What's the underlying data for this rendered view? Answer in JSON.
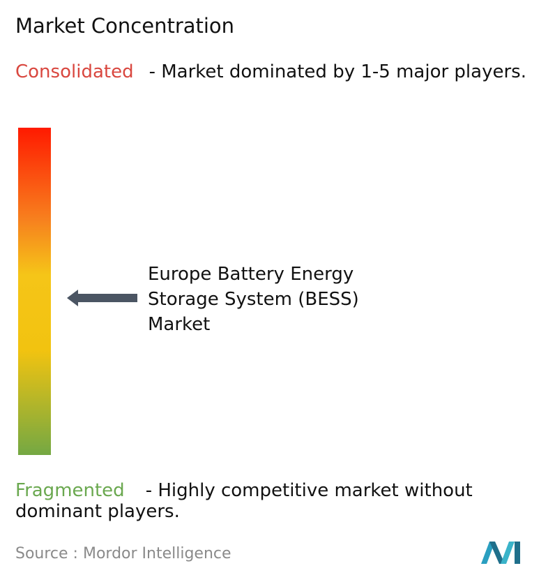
{
  "title": "Market Concentration",
  "consolidated": {
    "label": "Consolidated",
    "description": "- Market dominated by 1-5 major players."
  },
  "market": {
    "label": "Europe Battery Energy Storage System (BESS) Market"
  },
  "fragmented": {
    "label": "Fragmented",
    "description": "- Highly competitive market without dominant players."
  },
  "source": {
    "label": "Source :",
    "value": "Mordor Intelligence"
  }
}
